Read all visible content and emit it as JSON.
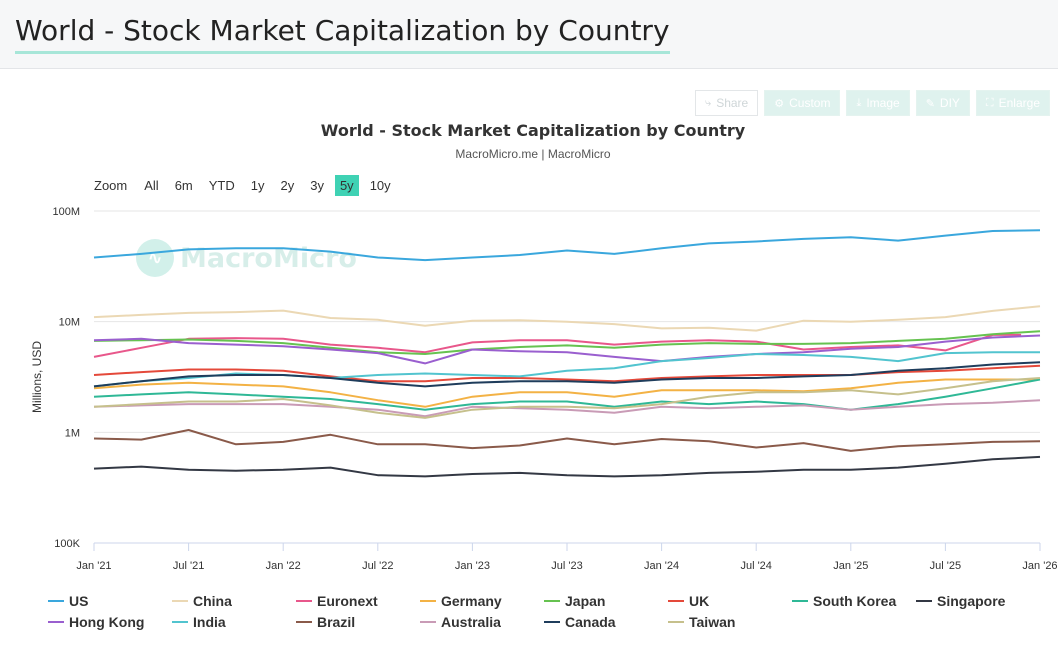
{
  "page": {
    "title": "World - Stock Market Capitalization by Country"
  },
  "toolbar": [
    {
      "label": "Share",
      "icon": "share-icon"
    },
    {
      "label": "Custom",
      "icon": "gear-icon"
    },
    {
      "label": "Image",
      "icon": "download-icon"
    },
    {
      "label": "DIY",
      "icon": "pencil-icon"
    },
    {
      "label": "Enlarge",
      "icon": "expand-icon"
    }
  ],
  "zoom": {
    "label": "Zoom",
    "options": [
      "All",
      "6m",
      "YTD",
      "1y",
      "2y",
      "3y",
      "5y",
      "10y"
    ],
    "active": "5y"
  },
  "watermark": "MacroMicro",
  "chart_data": {
    "type": "line",
    "title": "World - Stock Market Capitalization by Country",
    "subtitle": "MacroMicro.me | MacroMicro",
    "ylabel": "Millions, USD",
    "xlabel": "",
    "yscale": "log",
    "ylim": [
      100000,
      100000000
    ],
    "ytick_values": [
      100000,
      1000000,
      10000000,
      100000000
    ],
    "ytick_labels": [
      "100K",
      "1M",
      "10M",
      "100M"
    ],
    "xlim": [
      2021.0,
      2026.0
    ],
    "xtick_values": [
      2021.0,
      2021.5,
      2022.0,
      2022.5,
      2023.0,
      2023.5,
      2024.0,
      2024.5,
      2025.0,
      2025.5,
      2026.0
    ],
    "xtick_labels": [
      "Jan '21",
      "Jul '21",
      "Jan '22",
      "Jul '22",
      "Jan '23",
      "Jul '23",
      "Jan '24",
      "Jul '24",
      "Jan '25",
      "Jul '25",
      "Jan '26"
    ],
    "series": [
      {
        "name": "US",
        "color": "#3aa7dd",
        "x": [
          2021.0,
          2021.25,
          2021.5,
          2021.75,
          2022.0,
          2022.25,
          2022.5,
          2022.75,
          2023.0,
          2023.25,
          2023.5,
          2023.75,
          2024.0,
          2024.25,
          2024.5,
          2024.75,
          2025.0,
          2025.25,
          2025.5,
          2025.75,
          2026.0
        ],
        "values": [
          38000000,
          41000000,
          45000000,
          46000000,
          46000000,
          43000000,
          38000000,
          36000000,
          38000000,
          40000000,
          44000000,
          41000000,
          46000000,
          51000000,
          53000000,
          56000000,
          58000000,
          54000000,
          60000000,
          66000000,
          67000000
        ]
      },
      {
        "name": "China",
        "color": "#ebd8b4",
        "x": [
          2021.0,
          2021.25,
          2021.5,
          2021.75,
          2022.0,
          2022.25,
          2022.5,
          2022.75,
          2023.0,
          2023.25,
          2023.5,
          2023.75,
          2024.0,
          2024.25,
          2024.5,
          2024.75,
          2025.0,
          2025.25,
          2025.5,
          2025.75,
          2026.0
        ],
        "values": [
          11000000,
          11500000,
          12000000,
          12200000,
          12600000,
          10800000,
          10400000,
          9200000,
          10200000,
          10300000,
          10000000,
          9500000,
          8700000,
          8800000,
          8300000,
          10200000,
          10000000,
          10400000,
          11000000,
          12500000,
          13800000
        ]
      },
      {
        "name": "Euronext",
        "color": "#e8578b",
        "x": [
          2021.0,
          2021.25,
          2021.5,
          2021.75,
          2022.0,
          2022.25,
          2022.5,
          2022.75,
          2023.0,
          2023.25,
          2023.5,
          2023.75,
          2024.0,
          2024.25,
          2024.5,
          2024.75,
          2025.0,
          2025.25,
          2025.5,
          2025.75,
          2025.9
        ],
        "values": [
          4800000,
          5800000,
          7000000,
          7100000,
          7000000,
          6200000,
          5800000,
          5300000,
          6500000,
          6800000,
          6800000,
          6200000,
          6600000,
          6800000,
          6600000,
          5600000,
          5900000,
          6100000,
          5500000,
          7600000,
          7600000
        ]
      },
      {
        "name": "Germany",
        "color": "#f3b245",
        "x": [
          2021.0,
          2021.25,
          2021.5,
          2021.75,
          2022.0,
          2022.25,
          2022.5,
          2022.75,
          2023.0,
          2023.25,
          2023.5,
          2023.75,
          2024.0,
          2024.25,
          2024.5,
          2024.75,
          2025.0,
          2025.25,
          2025.5,
          2025.75,
          2026.0
        ],
        "values": [
          2500000,
          2700000,
          2800000,
          2700000,
          2600000,
          2300000,
          1950000,
          1700000,
          2100000,
          2300000,
          2300000,
          2100000,
          2400000,
          2400000,
          2400000,
          2350000,
          2500000,
          2800000,
          3000000,
          3000000,
          3000000
        ]
      },
      {
        "name": "Japan",
        "color": "#66c250",
        "x": [
          2021.0,
          2021.25,
          2021.5,
          2021.75,
          2022.0,
          2022.25,
          2022.5,
          2022.75,
          2023.0,
          2023.25,
          2023.5,
          2023.75,
          2024.0,
          2024.25,
          2024.5,
          2024.75,
          2025.0,
          2025.25,
          2025.5,
          2025.75,
          2026.0
        ],
        "values": [
          6700000,
          6800000,
          6900000,
          6700000,
          6400000,
          5800000,
          5300000,
          5100000,
          5600000,
          5900000,
          6100000,
          5800000,
          6200000,
          6400000,
          6300000,
          6300000,
          6400000,
          6700000,
          7000000,
          7700000,
          8200000
        ]
      },
      {
        "name": "UK",
        "color": "#e4493a",
        "x": [
          2021.0,
          2021.25,
          2021.5,
          2021.75,
          2022.0,
          2022.25,
          2022.5,
          2022.75,
          2023.0,
          2023.25,
          2023.5,
          2023.75,
          2024.0,
          2024.25,
          2024.5,
          2024.75,
          2025.0,
          2025.25,
          2025.5,
          2025.75,
          2026.0
        ],
        "values": [
          3300000,
          3500000,
          3700000,
          3700000,
          3600000,
          3200000,
          2900000,
          2900000,
          3100000,
          3100000,
          3000000,
          2900000,
          3100000,
          3200000,
          3300000,
          3300000,
          3300000,
          3500000,
          3600000,
          3800000,
          4000000
        ]
      },
      {
        "name": "South Korea",
        "color": "#2fb896",
        "x": [
          2021.0,
          2021.25,
          2021.5,
          2021.75,
          2022.0,
          2022.25,
          2022.5,
          2022.75,
          2023.0,
          2023.25,
          2023.5,
          2023.75,
          2024.0,
          2024.25,
          2024.5,
          2024.75,
          2025.0,
          2025.25,
          2025.5,
          2025.75,
          2026.0
        ],
        "values": [
          2100000,
          2200000,
          2300000,
          2200000,
          2100000,
          2000000,
          1800000,
          1600000,
          1800000,
          1900000,
          1900000,
          1700000,
          1900000,
          1800000,
          1900000,
          1800000,
          1600000,
          1800000,
          2100000,
          2500000,
          3000000
        ]
      },
      {
        "name": "Singapore",
        "color": "#333844",
        "x": [
          2021.0,
          2021.25,
          2021.5,
          2021.75,
          2022.0,
          2022.25,
          2022.5,
          2022.75,
          2023.0,
          2023.25,
          2023.5,
          2023.75,
          2024.0,
          2024.25,
          2024.5,
          2024.75,
          2025.0,
          2025.25,
          2025.5,
          2025.75,
          2026.0
        ],
        "values": [
          470000,
          490000,
          460000,
          450000,
          460000,
          480000,
          410000,
          400000,
          420000,
          430000,
          410000,
          400000,
          410000,
          430000,
          440000,
          460000,
          460000,
          480000,
          520000,
          570000,
          600000
        ]
      },
      {
        "name": "Hong Kong",
        "color": "#9a5fcf",
        "x": [
          2021.0,
          2021.25,
          2021.5,
          2021.75,
          2022.0,
          2022.25,
          2022.5,
          2022.75,
          2023.0,
          2023.25,
          2023.5,
          2023.75,
          2024.0,
          2024.25,
          2024.5,
          2024.75,
          2025.0,
          2025.25,
          2025.5,
          2025.75,
          2026.0
        ],
        "values": [
          6800000,
          7000000,
          6400000,
          6200000,
          6000000,
          5600000,
          5200000,
          4200000,
          5600000,
          5400000,
          5300000,
          4800000,
          4400000,
          4800000,
          5100000,
          5300000,
          5700000,
          5900000,
          6600000,
          7200000,
          7500000
        ]
      },
      {
        "name": "India",
        "color": "#52c4cf",
        "x": [
          2021.0,
          2021.25,
          2021.5,
          2021.75,
          2022.0,
          2022.25,
          2022.5,
          2022.75,
          2023.0,
          2023.25,
          2023.5,
          2023.75,
          2024.0,
          2024.25,
          2024.5,
          2024.75,
          2025.0,
          2025.25,
          2025.5,
          2025.75,
          2026.0
        ],
        "values": [
          2600000,
          2900000,
          3100000,
          3400000,
          3300000,
          3100000,
          3300000,
          3400000,
          3300000,
          3200000,
          3600000,
          3800000,
          4400000,
          4700000,
          5100000,
          5000000,
          4800000,
          4400000,
          5200000,
          5300000,
          5300000
        ]
      },
      {
        "name": "Brazil",
        "color": "#8a5a4a",
        "x": [
          2021.0,
          2021.25,
          2021.5,
          2021.75,
          2022.0,
          2022.25,
          2022.5,
          2022.75,
          2023.0,
          2023.25,
          2023.5,
          2023.75,
          2024.0,
          2024.25,
          2024.5,
          2024.75,
          2025.0,
          2025.25,
          2025.5,
          2025.75,
          2026.0
        ],
        "values": [
          880000,
          860000,
          1050000,
          780000,
          820000,
          950000,
          780000,
          780000,
          720000,
          760000,
          880000,
          780000,
          870000,
          830000,
          730000,
          800000,
          680000,
          750000,
          780000,
          820000,
          830000
        ]
      },
      {
        "name": "Australia",
        "color": "#c99bb6",
        "x": [
          2021.0,
          2021.25,
          2021.5,
          2021.75,
          2022.0,
          2022.25,
          2022.5,
          2022.75,
          2023.0,
          2023.25,
          2023.5,
          2023.75,
          2024.0,
          2024.25,
          2024.5,
          2024.75,
          2025.0,
          2025.25,
          2025.5,
          2025.75,
          2026.0
        ],
        "values": [
          1700000,
          1750000,
          1800000,
          1800000,
          1800000,
          1700000,
          1600000,
          1400000,
          1700000,
          1650000,
          1600000,
          1500000,
          1700000,
          1650000,
          1700000,
          1750000,
          1600000,
          1700000,
          1800000,
          1850000,
          1950000
        ]
      },
      {
        "name": "Canada",
        "color": "#1f3d5c",
        "x": [
          2021.0,
          2021.25,
          2021.5,
          2021.75,
          2022.0,
          2022.25,
          2022.5,
          2022.75,
          2023.0,
          2023.25,
          2023.5,
          2023.75,
          2024.0,
          2024.25,
          2024.5,
          2024.75,
          2025.0,
          2025.25,
          2025.5,
          2025.75,
          2026.0
        ],
        "values": [
          2600000,
          2900000,
          3200000,
          3300000,
          3300000,
          3100000,
          2800000,
          2600000,
          2800000,
          2900000,
          2900000,
          2800000,
          3000000,
          3100000,
          3100000,
          3200000,
          3300000,
          3600000,
          3800000,
          4100000,
          4300000
        ]
      },
      {
        "name": "Taiwan",
        "color": "#c6c08c",
        "x": [
          2021.0,
          2021.25,
          2021.5,
          2021.75,
          2022.0,
          2022.25,
          2022.5,
          2022.75,
          2023.0,
          2023.25,
          2023.5,
          2023.75,
          2024.0,
          2024.25,
          2024.5,
          2024.75,
          2025.0,
          2025.25,
          2025.5,
          2025.75,
          2026.0
        ],
        "values": [
          1700000,
          1800000,
          1900000,
          1900000,
          2000000,
          1750000,
          1500000,
          1350000,
          1600000,
          1700000,
          1700000,
          1650000,
          1800000,
          2100000,
          2300000,
          2300000,
          2400000,
          2200000,
          2500000,
          2900000,
          3100000
        ]
      }
    ]
  }
}
